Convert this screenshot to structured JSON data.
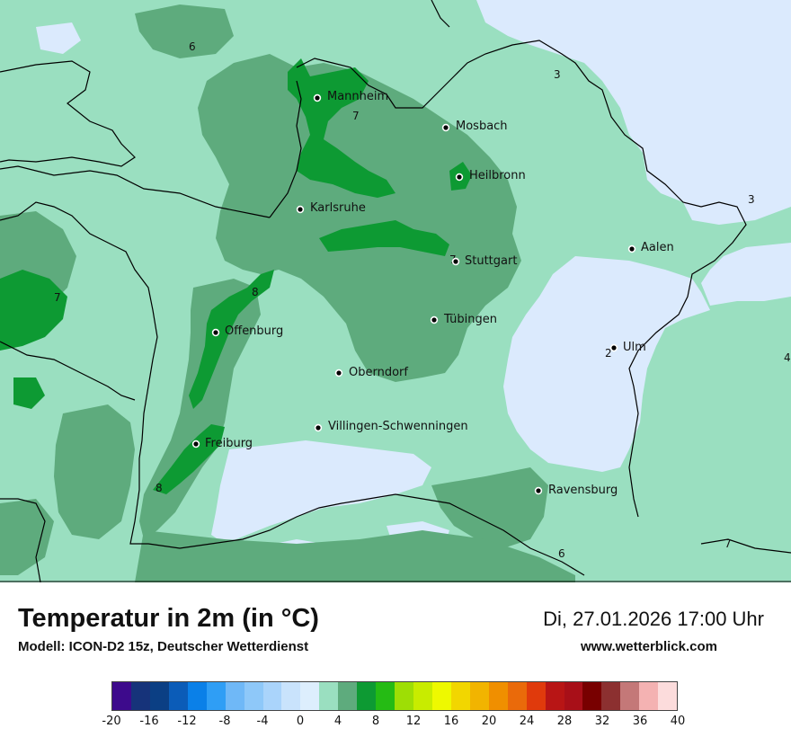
{
  "title": "Temperatur in 2m (in °C)",
  "subtitle": "Modell: ICON-D2 15z, Deutscher Wetterdienst",
  "datetime": "Di, 27.01.2026 17:00 Uhr",
  "website": "www.wetterblick.com",
  "cities": [
    {
      "name": "Mannheim"
    },
    {
      "name": "Mosbach"
    },
    {
      "name": "Heilbronn"
    },
    {
      "name": "Karlsruhe"
    },
    {
      "name": "Aalen"
    },
    {
      "name": "Stuttgart"
    },
    {
      "name": "Tübingen"
    },
    {
      "name": "Offenburg"
    },
    {
      "name": "Ulm"
    },
    {
      "name": "Oberndorf"
    },
    {
      "name": "Villingen-Schwenningen"
    },
    {
      "name": "Freiburg"
    },
    {
      "name": "Ravensburg"
    }
  ],
  "isotherm_labels": [
    "6",
    "3",
    "7",
    "3",
    "7",
    "8",
    "7",
    "2",
    "4",
    "8",
    "6",
    "7"
  ],
  "legend": {
    "ticks": [
      "-20",
      "-16",
      "-12",
      "-8",
      "-4",
      "0",
      "4",
      "8",
      "12",
      "16",
      "20",
      "24",
      "28",
      "32",
      "36",
      "40"
    ],
    "colors": [
      "#3d0a8c",
      "#16337a",
      "#0b3f84",
      "#0b5cb8",
      "#0a80e8",
      "#2f9ef5",
      "#6fb8f7",
      "#8ec8f9",
      "#aad4fb",
      "#c9e3fc",
      "#ddeefd",
      "#9adfc0",
      "#5eab7d",
      "#0d9a33",
      "#25bb14",
      "#9ede05",
      "#c8ec00",
      "#eef900",
      "#f2d600",
      "#f2b400",
      "#f08f00",
      "#ea6a0a",
      "#e03a0c",
      "#b81515",
      "#a80f18",
      "#780000",
      "#8c3030",
      "#c47878",
      "#f4b2b2",
      "#fcdcdc"
    ]
  },
  "map_colors": {
    "below_zero_plus": "#dbeafd",
    "two_to_four": "#9adfc0",
    "four_to_six": "#9adfc0",
    "six_to_eight": "#5eab7d",
    "eight_to_ten": "#0d9a33"
  }
}
